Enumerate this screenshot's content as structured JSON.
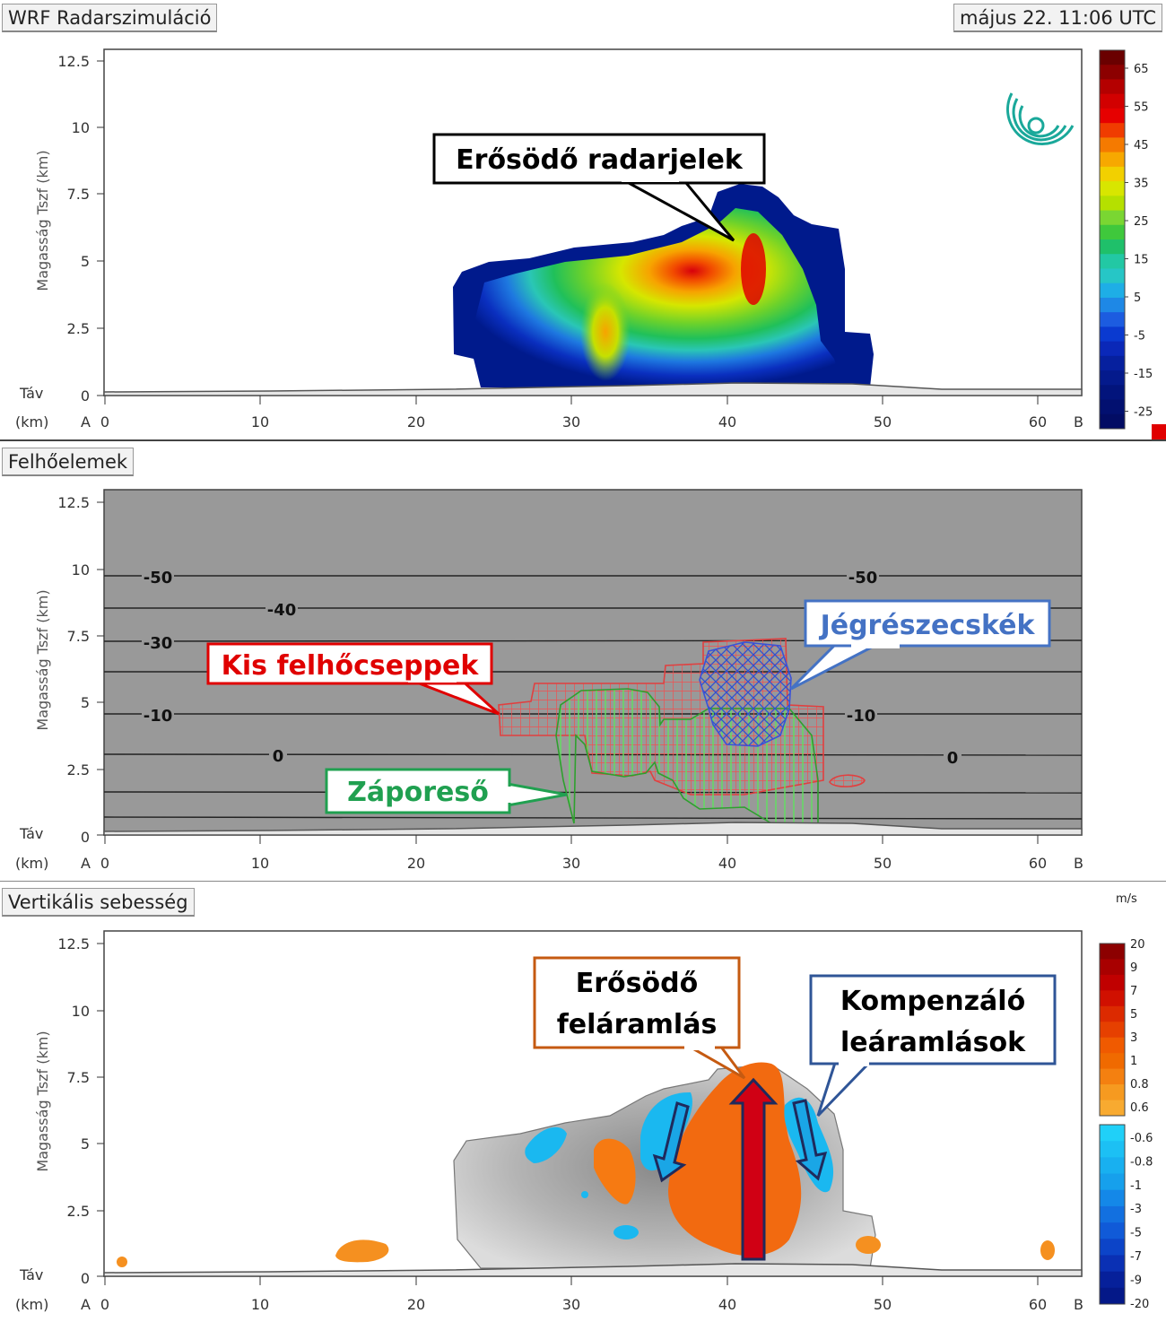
{
  "header": {
    "title": "WRF Radarszimuláció",
    "datetime": "május 22. 11:06 UTC"
  },
  "axes": {
    "ylabel": "Magasság Tszf (km)",
    "y_ticks": [
      "12.5",
      "10",
      "7.5",
      "5",
      "2.5",
      "0"
    ],
    "x_ticks": [
      "0",
      "10",
      "20",
      "30",
      "40",
      "50",
      "60"
    ],
    "x_label_top": "Táv",
    "x_label_bottom": "(km)",
    "x_start_label": "A",
    "x_end_label": "B",
    "x_range": [
      0,
      63
    ],
    "y_range": [
      0,
      13
    ]
  },
  "panels": [
    {
      "id": "radar",
      "title": "WRF Radarszimuláció",
      "annotation": "Erősödő radarjelek",
      "colorbar_labels": [
        "65",
        "55",
        "45",
        "35",
        "25",
        "15",
        "5",
        "-5",
        "-15",
        "-25"
      ]
    },
    {
      "id": "clouds",
      "title": "Felhőelemek",
      "annotations": {
        "droplets": "Kis felhőcseppek",
        "ice": "Jégrészecskék",
        "rain": "Záporeső"
      },
      "temperature_labels": [
        "-50",
        "-50",
        "-40",
        "-30",
        "-10",
        "-10",
        "0",
        "0"
      ]
    },
    {
      "id": "vertical",
      "title": "Vertikális sebesség",
      "unit": "m/s",
      "annotations": {
        "updraft": [
          "Erősödő",
          "feláramlás"
        ],
        "downdraft": [
          "Kompenzáló",
          "leáramlások"
        ]
      },
      "colorbar_pos_labels": [
        "20",
        "9",
        "7",
        "5",
        "3",
        "1",
        "0.8",
        "0.6"
      ],
      "colorbar_neg_labels": [
        "-0.6",
        "-0.8",
        "-1",
        "-3",
        "-5",
        "-7",
        "-9",
        "-20"
      ]
    }
  ],
  "chart_data": [
    {
      "type": "heatmap",
      "title": "WRF Radarszimuláció",
      "xlabel": "Táv (km)",
      "ylabel": "Magasság Tszf (km)",
      "xlim": [
        0,
        63
      ],
      "ylim": [
        0,
        13
      ],
      "colorbar": {
        "min": -25,
        "max": 65,
        "ticks": [
          65,
          55,
          45,
          35,
          25,
          15,
          5,
          -5,
          -15,
          -25
        ]
      },
      "features": [
        {
          "x_range": [
            23,
            49
          ],
          "y_top": 7.8,
          "max_value": 60,
          "max_at": [
            41.5,
            5.2
          ]
        }
      ]
    },
    {
      "type": "heatmap",
      "title": "Felhőelemek",
      "xlabel": "Táv (km)",
      "ylabel": "Magasság Tszf (km)",
      "isotherms": [
        {
          "value": -50,
          "height_km": 10.0
        },
        {
          "value": -40,
          "height_km": 8.6
        },
        {
          "value": -30,
          "height_km": 7.3
        },
        {
          "value": -10,
          "height_km": 4.6
        },
        {
          "value": 0,
          "height_km": 3.0
        }
      ],
      "regions": [
        {
          "name": "Kis felhőcseppek",
          "x_range": [
            25.5,
            46
          ],
          "y_range": [
            1.5,
            7.3
          ]
        },
        {
          "name": "Jégrészecskék",
          "x_range": [
            38.5,
            44
          ],
          "y_range": [
            3.5,
            6.8
          ]
        },
        {
          "name": "Záporeső",
          "x_range": [
            29.5,
            46
          ],
          "y_range": [
            0,
            5.5
          ]
        }
      ]
    },
    {
      "type": "heatmap",
      "title": "Vertikális sebesség",
      "unit": "m/s",
      "xlabel": "Táv (km)",
      "ylabel": "Magasság Tszf (km)",
      "colorbar": {
        "positive": [
          20,
          9,
          7,
          5,
          3,
          1,
          0.8,
          0.6
        ],
        "negative": [
          -0.6,
          -0.8,
          -1,
          -3,
          -5,
          -7,
          -9,
          -20
        ]
      },
      "features": [
        {
          "name": "Erősödő feláramlás",
          "x": 42,
          "y_range": [
            0.5,
            7.5
          ]
        },
        {
          "name": "Kompenzáló leáramlások",
          "x": [
            35.5,
            45
          ],
          "y_range": [
            3,
            6
          ]
        }
      ]
    }
  ]
}
